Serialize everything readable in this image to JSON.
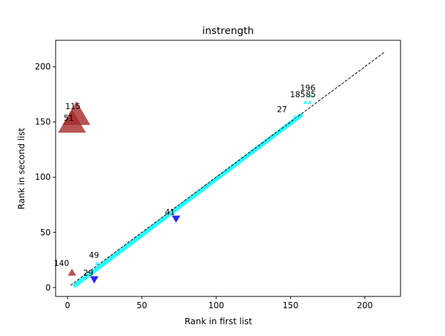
{
  "chart_data": {
    "type": "scatter",
    "title": "instrength",
    "xlabel": "Rank in first list",
    "ylabel": "Rank in second list",
    "xlim": [
      -8,
      224
    ],
    "ylim": [
      -8,
      224
    ],
    "xticks": [
      0,
      50,
      100,
      150,
      200
    ],
    "yticks": [
      0,
      50,
      100,
      150,
      200
    ],
    "grid": false,
    "reference_line": {
      "style": "dashed",
      "color": "#000000",
      "x": [
        2,
        213
      ],
      "y": [
        2,
        213
      ]
    },
    "trend_band": {
      "color": "#00ffff",
      "x": [
        5,
        157
      ],
      "y": [
        2,
        156
      ]
    },
    "points": [
      {
        "label": "115",
        "x": 6,
        "y": 158,
        "marker": "triangle-up",
        "size": "large",
        "color": "#a52a2a"
      },
      {
        "label": "51",
        "x": 3,
        "y": 151,
        "marker": "triangle-up",
        "size": "large",
        "color": "#a52a2a"
      },
      {
        "label": "140",
        "x": 3,
        "y": 14,
        "marker": "triangle-up",
        "size": "small",
        "color": "#a52a2a"
      },
      {
        "label": "29",
        "x": 18,
        "y": 7,
        "marker": "triangle-down",
        "size": "small",
        "color": "#0000ff"
      },
      {
        "label": "41",
        "x": 73,
        "y": 62,
        "marker": "triangle-down",
        "size": "small",
        "color": "#0000ff"
      },
      {
        "label": "49",
        "x": 20,
        "y": 22,
        "marker": "triangle-up",
        "size": "tiny",
        "color": "#00ffff"
      },
      {
        "label": "27",
        "x": 153,
        "y": 155,
        "marker": "triangle-up",
        "size": "tiny",
        "color": "#00ffff"
      },
      {
        "label": "185",
        "x": 160,
        "y": 168,
        "marker": "triangle-up",
        "size": "tiny",
        "color": "#00ffff"
      },
      {
        "label": "85",
        "x": 163,
        "y": 168,
        "marker": "triangle-up",
        "size": "tiny",
        "color": "#00ffff"
      },
      {
        "label": "196",
        "x": 164,
        "y": 174,
        "marker": "triangle-up",
        "size": "tiny",
        "color": "#00ffff"
      }
    ]
  }
}
